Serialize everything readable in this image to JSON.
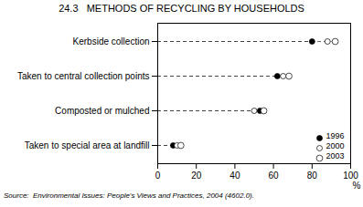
{
  "chart_data": {
    "type": "dot",
    "title": "24.3   METHODS OF RECYCLING BY HOUSEHOLDS",
    "categories": [
      "Taken to special area at landfill",
      "Composted or mulched",
      "Taken to central collection points",
      "Kerbside collection"
    ],
    "series": [
      {
        "name": "1996",
        "color": "black",
        "values": [
          8,
          53,
          62,
          80
        ]
      },
      {
        "name": "2000",
        "color": "white",
        "values": [
          10,
          50,
          65,
          88
        ]
      },
      {
        "name": "2003",
        "color": "white",
        "values": [
          12,
          55,
          68,
          92
        ]
      }
    ],
    "xlabel": "%",
    "xlim": [
      0,
      100
    ],
    "xticks": [
      0,
      20,
      40,
      60,
      80,
      100
    ],
    "orientation": "horizontal",
    "legend": "lower right",
    "grid": false,
    "source": "Source:  Environmental Issues: People's Views and Practices, 2004 (4602.0)."
  }
}
